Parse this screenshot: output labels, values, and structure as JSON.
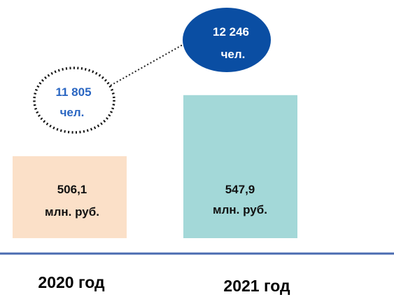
{
  "chart_data": {
    "type": "bar",
    "categories": [
      "2020 год",
      "2021 год"
    ],
    "values": [
      506.1,
      547.9
    ],
    "value_labels": [
      [
        "506,1",
        "млн. руб."
      ],
      [
        "547,9",
        "млн. руб."
      ]
    ],
    "people": [
      11805,
      12246
    ],
    "people_labels": [
      [
        "11 805",
        "чел."
      ],
      [
        "12 246",
        "чел."
      ]
    ],
    "bar_colors": [
      "#fbe0c8",
      "#a3d8d8"
    ],
    "bubble_styles": [
      "dotted-outline",
      "filled"
    ],
    "bubble_colors": {
      "filled": "#0a4ea3",
      "outline_text": "#2a66c2"
    },
    "axis_color": "#4a6bb0"
  }
}
